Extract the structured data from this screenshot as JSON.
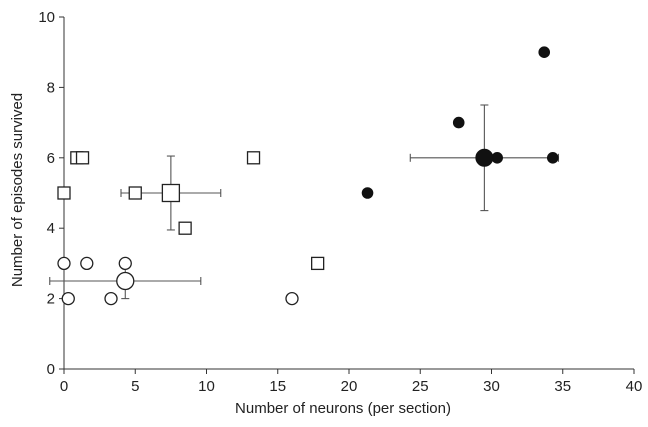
{
  "chart_data": {
    "type": "scatter",
    "title": "",
    "xlabel": "Number of neurons (per section)",
    "ylabel": "Number of episodes survived",
    "xlim": [
      0,
      40
    ],
    "ylim": [
      0,
      10
    ],
    "xticks": [
      0,
      5,
      10,
      15,
      20,
      25,
      30,
      35,
      40
    ],
    "yticks": [
      0,
      2,
      4,
      6,
      8,
      10
    ],
    "grid": false,
    "legend": "none",
    "series": [
      {
        "marker": "open-circle",
        "points": [
          [
            0,
            3
          ],
          [
            0.3,
            2
          ],
          [
            1.6,
            3
          ],
          [
            3.3,
            2
          ],
          [
            4.3,
            3
          ],
          [
            16,
            2
          ]
        ],
        "mean": {
          "x": 4.3,
          "y": 2.5,
          "xerr": 5.3,
          "yerr": 0.5
        }
      },
      {
        "marker": "open-square",
        "points": [
          [
            0,
            5
          ],
          [
            0.9,
            6
          ],
          [
            1.3,
            6
          ],
          [
            5,
            5
          ],
          [
            8.5,
            4
          ],
          [
            13.3,
            6
          ],
          [
            17.8,
            3
          ]
        ],
        "mean": {
          "x": 7.5,
          "y": 5,
          "xerr": 3.5,
          "yerr": 1.05
        }
      },
      {
        "marker": "filled-circle",
        "points": [
          [
            21.3,
            5
          ],
          [
            27.7,
            7
          ],
          [
            30.4,
            6
          ],
          [
            33.7,
            9
          ],
          [
            34.3,
            6
          ]
        ],
        "mean": {
          "x": 29.5,
          "y": 6,
          "xerr": 5.2,
          "yerr": 1.5
        }
      }
    ]
  }
}
